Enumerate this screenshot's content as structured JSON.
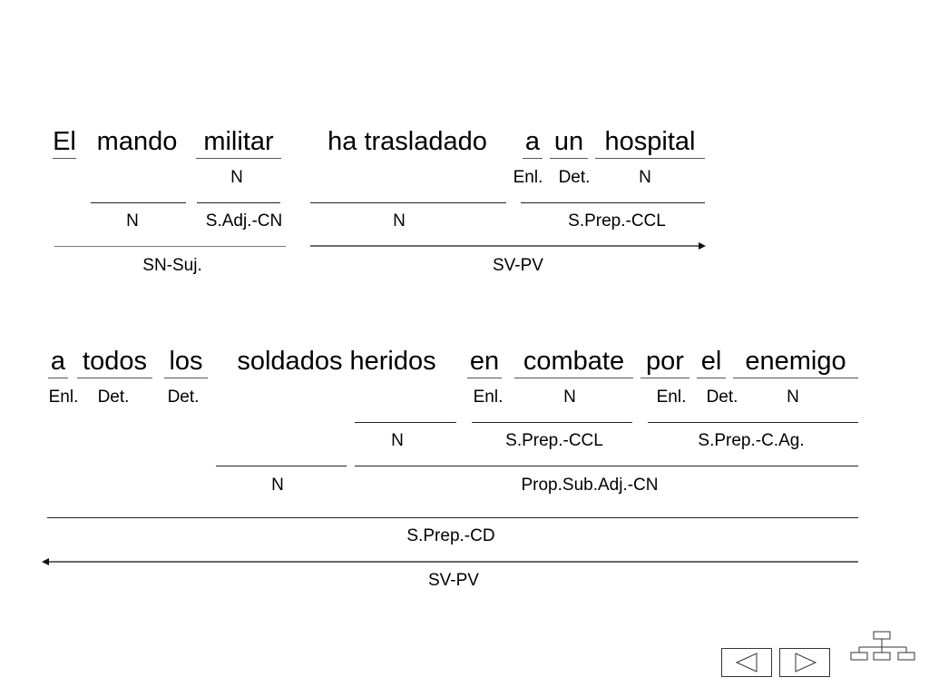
{
  "sentence1": {
    "words": [
      "El",
      "mando",
      "militar",
      "ha trasladado",
      "a",
      "un",
      "hospital"
    ],
    "level1": [
      "N",
      "Enl.",
      "Det.",
      "N"
    ],
    "level2": [
      "N",
      "S.Adj.-CN",
      "N",
      "S.Prep.-CCL"
    ],
    "level3": [
      "SN-Suj.",
      "SV-PV"
    ]
  },
  "sentence2": {
    "words": [
      "a",
      "todos",
      "los",
      "soldados heridos",
      "en",
      "combate",
      "por",
      "el",
      "enemigo"
    ],
    "level1": [
      "Enl.",
      "Det.",
      "Det.",
      "Enl.",
      "N",
      "Enl.",
      "Det.",
      "N"
    ],
    "level2": [
      "N",
      "S.Prep.-CCL",
      "S.Prep.-C.Ag."
    ],
    "level3": [
      "N",
      "Prop.Sub.Adj.-CN"
    ],
    "level4": [
      "S.Prep.-CD"
    ],
    "level5": [
      "SV-PV"
    ]
  },
  "navigation": {
    "prev_icon": "triangle-left-icon",
    "next_icon": "triangle-right-icon",
    "outline_icon": "hierarchy-icon"
  }
}
